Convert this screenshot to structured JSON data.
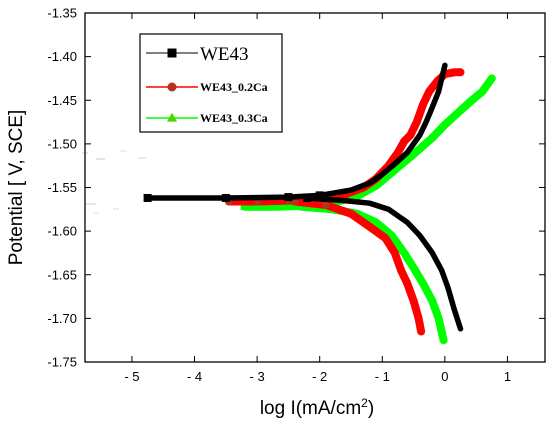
{
  "chart_data": {
    "type": "line",
    "xlabel": "log I(mA/cm",
    "xlabel_sup": "2",
    "xlabel_end": ")",
    "ylabel": "Potential [ V, SCE]",
    "xlim": [
      -5.75,
      1.6
    ],
    "ylim": [
      -1.75,
      -1.35
    ],
    "x_ticks": [
      -5,
      -4,
      -3,
      -2,
      -1,
      0,
      1
    ],
    "x_tick_labels": [
      "- 5",
      "- 4",
      "- 3",
      "- 2",
      "- 1",
      "0",
      "1"
    ],
    "y_ticks": [
      -1.35,
      -1.4,
      -1.45,
      -1.5,
      -1.55,
      -1.6,
      -1.65,
      -1.7,
      -1.75
    ],
    "y_tick_labels": [
      "-1.35",
      "-1.40",
      "-1.45",
      "-1.50",
      "-1.55",
      "-1.60",
      "-1.65",
      "-1.70",
      "-1.75"
    ],
    "legend_placement": "upper-left",
    "grid": false,
    "series": [
      {
        "name": "WE43",
        "color": "#000000",
        "marker": "square",
        "anodic": [
          [
            -4.75,
            -1.562
          ],
          [
            -3.5,
            -1.562
          ],
          [
            -2.5,
            -1.561
          ],
          [
            -2.0,
            -1.559
          ],
          [
            -1.5,
            -1.553
          ],
          [
            -1.2,
            -1.545
          ],
          [
            -1.0,
            -1.535
          ],
          [
            -0.8,
            -1.523
          ],
          [
            -0.6,
            -1.51
          ],
          [
            -0.4,
            -1.49
          ],
          [
            -0.3,
            -1.475
          ],
          [
            -0.2,
            -1.458
          ],
          [
            -0.1,
            -1.44
          ],
          [
            -0.05,
            -1.425
          ],
          [
            0.0,
            -1.41
          ]
        ],
        "cathodic": [
          [
            -2.2,
            -1.562
          ],
          [
            -1.6,
            -1.565
          ],
          [
            -1.2,
            -1.568
          ],
          [
            -0.9,
            -1.575
          ],
          [
            -0.6,
            -1.59
          ],
          [
            -0.4,
            -1.605
          ],
          [
            -0.2,
            -1.625
          ],
          [
            -0.05,
            -1.645
          ],
          [
            0.05,
            -1.665
          ],
          [
            0.15,
            -1.69
          ],
          [
            0.25,
            -1.712
          ]
        ]
      },
      {
        "name": "WE43_0.2Ca",
        "color": "#ff0000",
        "marker": "circle",
        "anodic": [
          [
            -3.45,
            -1.566
          ],
          [
            -3.0,
            -1.566
          ],
          [
            -2.5,
            -1.565
          ],
          [
            -2.0,
            -1.563
          ],
          [
            -1.6,
            -1.558
          ],
          [
            -1.3,
            -1.55
          ],
          [
            -1.1,
            -1.54
          ],
          [
            -0.9,
            -1.525
          ],
          [
            -0.75,
            -1.51
          ],
          [
            -0.65,
            -1.497
          ],
          [
            -0.55,
            -1.49
          ],
          [
            -0.45,
            -1.475
          ],
          [
            -0.35,
            -1.455
          ],
          [
            -0.25,
            -1.44
          ],
          [
            -0.12,
            -1.428
          ],
          [
            0.0,
            -1.42
          ],
          [
            0.15,
            -1.418
          ],
          [
            0.25,
            -1.418
          ]
        ],
        "cathodic": [
          [
            -2.4,
            -1.566
          ],
          [
            -1.9,
            -1.57
          ],
          [
            -1.5,
            -1.58
          ],
          [
            -1.2,
            -1.595
          ],
          [
            -0.95,
            -1.608
          ],
          [
            -0.8,
            -1.625
          ],
          [
            -0.7,
            -1.645
          ],
          [
            -0.6,
            -1.66
          ],
          [
            -0.5,
            -1.68
          ],
          [
            -0.42,
            -1.7
          ],
          [
            -0.38,
            -1.715
          ]
        ]
      },
      {
        "name": "WE43_0.3Ca",
        "color": "#00ff00",
        "marker": "triangle",
        "anodic": [
          [
            -3.2,
            -1.572
          ],
          [
            -2.7,
            -1.572
          ],
          [
            -2.2,
            -1.571
          ],
          [
            -1.8,
            -1.568
          ],
          [
            -1.4,
            -1.56
          ],
          [
            -1.1,
            -1.548
          ],
          [
            -0.8,
            -1.53
          ],
          [
            -0.5,
            -1.512
          ],
          [
            -0.2,
            -1.493
          ],
          [
            0.0,
            -1.478
          ],
          [
            0.2,
            -1.465
          ],
          [
            0.4,
            -1.452
          ],
          [
            0.6,
            -1.44
          ],
          [
            0.75,
            -1.425
          ]
        ],
        "cathodic": [
          [
            -2.3,
            -1.572
          ],
          [
            -1.8,
            -1.575
          ],
          [
            -1.4,
            -1.58
          ],
          [
            -1.1,
            -1.59
          ],
          [
            -0.85,
            -1.605
          ],
          [
            -0.65,
            -1.625
          ],
          [
            -0.5,
            -1.642
          ],
          [
            -0.35,
            -1.66
          ],
          [
            -0.2,
            -1.68
          ],
          [
            -0.1,
            -1.7
          ],
          [
            -0.02,
            -1.725
          ]
        ]
      }
    ]
  }
}
